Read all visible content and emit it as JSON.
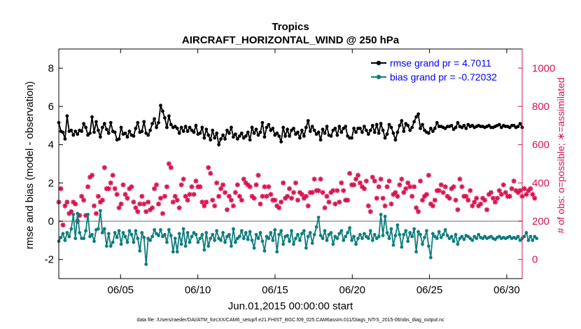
{
  "chart_data": {
    "type": "line",
    "title": "Tropics",
    "subtitle": "AIRCRAFT_HORIZONTAL_WIND @ 250 hPa",
    "xlabel": "Jun.01,2015 00:00:00 start",
    "ylabel": "rmse and bias (model - observation)",
    "y2label": "# of obs: o=possible; ∗=assimilated",
    "footnote": "data file: /Users/raeder/DAI/ATM_forcXX/CAM6_setup/f.e21.FHIST_BGC.f09_025.CAM6assim.011/Diags_NTrS_2015-06/obs_diag_output.nc",
    "xlim": [
      1,
      31
    ],
    "ylim": [
      -3,
      9
    ],
    "y2lim": [
      -100,
      1100
    ],
    "x_ticks": [
      {
        "value": 5,
        "label": "06/05"
      },
      {
        "value": 10,
        "label": "06/10"
      },
      {
        "value": 15,
        "label": "06/15"
      },
      {
        "value": 20,
        "label": "06/20"
      },
      {
        "value": 25,
        "label": "06/25"
      },
      {
        "value": 30,
        "label": "06/30"
      }
    ],
    "y_ticks": [
      -2,
      0,
      2,
      4,
      6,
      8
    ],
    "y2_ticks": [
      0,
      200,
      400,
      600,
      800,
      1000
    ],
    "zero_line": 0,
    "legend": [
      "rmse grand pr = 4.7011",
      "bias grand pr = -0.72032"
    ],
    "colors": {
      "rmse": "#000000",
      "bias": "#0e7d7d",
      "obs": "#d6154f",
      "zero": "#b4b4b4"
    },
    "series": [
      {
        "name": "rmse",
        "values": [
          5.15,
          4.7,
          4.65,
          4.3,
          5.5,
          4.7,
          4.75,
          4.5,
          4.7,
          4.55,
          4.75,
          4.7,
          5.1,
          4.9,
          4.5,
          4.6,
          5.45,
          4.65,
          5.2,
          4.75,
          4.4,
          4.9,
          5.1,
          4.8,
          4.6,
          5.15,
          4.7,
          4.65,
          4.25,
          4.3,
          4.9,
          4.55,
          4.6,
          4.4,
          4.7,
          4.5,
          4.45,
          4.85,
          5.15,
          4.65,
          4.7,
          5.2,
          4.6,
          4.5,
          4.75,
          5.1,
          5.35,
          4.9,
          5.15,
          6.05,
          5.75,
          5.4,
          4.9,
          5.5,
          5.05,
          4.9,
          4.95,
          4.85,
          4.6,
          4.9,
          4.7,
          4.95,
          4.7,
          4.9,
          4.75,
          4.65,
          5.0,
          4.55,
          4.6,
          4.9,
          4.35,
          4.8,
          4.5,
          4.25,
          4.75,
          4.35,
          4.6,
          4.0,
          4.3,
          4.5,
          4.3,
          4.75,
          4.6,
          4.9,
          4.4,
          4.55,
          4.3,
          4.45,
          4.6,
          4.35,
          4.45,
          4.65,
          4.25,
          4.9,
          4.6,
          4.8,
          4.5,
          4.65,
          5.15,
          4.4,
          4.9,
          5.05,
          4.75,
          4.85,
          4.5,
          4.6,
          4.45,
          4.15,
          4.9,
          4.45,
          4.8,
          4.45,
          4.75,
          4.85,
          4.55,
          4.65,
          4.35,
          4.75,
          4.45,
          4.9,
          5.25,
          4.7,
          4.95,
          4.75,
          4.55,
          4.65,
          4.25,
          4.8,
          4.6,
          4.95,
          4.5,
          4.45,
          4.75,
          4.85,
          4.5,
          4.95,
          4.65,
          4.85,
          4.95,
          4.45,
          4.35,
          4.35,
          4.85,
          4.65,
          4.85,
          4.85,
          4.65,
          4.95,
          4.75,
          4.55,
          4.75,
          5.0,
          4.65,
          5.05,
          4.6,
          5.1,
          4.75,
          4.35,
          4.55,
          5.05,
          4.9,
          4.6,
          4.25,
          4.65,
          5.0,
          5.25,
          4.7,
          5.1,
          5.0,
          4.75,
          4.9,
          5.2,
          5.45,
          5.6,
          4.85,
          5.05,
          4.75,
          4.65,
          4.6,
          4.85,
          4.7,
          4.85,
          5.15,
          4.95,
          4.95,
          4.9,
          4.85,
          4.95,
          4.95,
          5.0,
          4.8,
          4.9,
          5.15,
          4.95,
          4.9,
          5.0,
          4.85,
          5.05,
          4.95,
          5.0,
          4.9,
          4.95,
          5.0,
          4.95,
          4.95,
          4.9,
          4.95,
          5.0,
          4.9,
          4.9,
          4.95,
          5.0,
          5.05,
          4.9,
          5.0,
          4.95,
          4.95,
          4.9,
          5.0,
          5.0,
          4.9,
          4.95,
          5.1,
          4.9
        ]
      },
      {
        "name": "bias",
        "values": [
          -1.05,
          -0.85,
          -0.65,
          -1.0,
          -0.6,
          -0.8,
          -0.4,
          0.35,
          -0.9,
          0.4,
          -0.6,
          -0.9,
          -0.9,
          -0.5,
          0.35,
          -0.8,
          -0.7,
          -1.05,
          -0.45,
          -0.4,
          0.55,
          -0.6,
          -0.4,
          -1.3,
          -0.65,
          -1.3,
          -1.1,
          -0.6,
          -0.85,
          -0.5,
          -1.2,
          -0.6,
          -0.8,
          -1.1,
          -0.5,
          -0.7,
          -1.1,
          -0.5,
          -0.9,
          -1.55,
          -0.6,
          -0.85,
          -2.25,
          -0.9,
          -1.0,
          -0.8,
          -0.45,
          -0.65,
          -0.75,
          -0.45,
          -0.8,
          -0.7,
          -1.1,
          -0.45,
          -0.75,
          -1.6,
          -0.9,
          -1.6,
          -0.65,
          -1.2,
          -0.4,
          -1.3,
          -0.6,
          -1.1,
          -0.8,
          -0.6,
          -0.7,
          -1.1,
          -0.9,
          -0.7,
          -1.5,
          -0.6,
          -1.3,
          -0.9,
          -0.7,
          -1.0,
          -0.5,
          -0.9,
          -1.0,
          -0.6,
          -1.1,
          -0.8,
          -0.7,
          -1.3,
          -0.4,
          -1.1,
          -0.9,
          -0.8,
          -0.5,
          -0.9,
          -0.6,
          -0.95,
          -0.55,
          -1.0,
          -1.4,
          -0.7,
          -0.9,
          -0.6,
          -1.05,
          -1.55,
          -0.8,
          -0.9,
          -0.6,
          -1.0,
          -0.45,
          -1.6,
          -0.7,
          -0.5,
          -1.2,
          -0.8,
          -0.75,
          -1.05,
          -0.5,
          -1.2,
          -0.9,
          -0.7,
          -1.0,
          -0.65,
          -0.5,
          -1.4,
          -0.8,
          -0.6,
          -1.15,
          -0.7,
          -0.3,
          0.2,
          -0.75,
          -0.9,
          -0.5,
          -1.0,
          -0.7,
          -0.6,
          -1.2,
          -0.8,
          -0.9,
          -0.65,
          -0.5,
          -1.0,
          -0.8,
          -0.6,
          -0.35,
          -1.0,
          -0.8,
          -1.2,
          -0.9,
          -0.7,
          -0.9,
          -0.65,
          -0.8,
          -0.9,
          -0.5,
          -1.0,
          -0.7,
          -0.9,
          -0.8,
          0.35,
          -0.75,
          0.25,
          -0.6,
          -0.9,
          -0.4,
          -1.25,
          -0.75,
          -0.2,
          -0.7,
          -1.35,
          -0.7,
          -0.5,
          -1.05,
          -0.6,
          -0.8,
          -0.4,
          -1.6,
          -0.55,
          -0.7,
          -1.2,
          -0.85,
          -0.5,
          -1.3,
          -1.9,
          -0.65,
          -0.8,
          -0.9,
          -0.55,
          -0.85,
          -0.7,
          -0.45,
          -0.75,
          -0.9,
          -0.8,
          -1.05,
          -0.7,
          -1.2,
          -0.9,
          -0.8,
          -0.95,
          -0.75,
          -0.8,
          -0.9,
          -1.0,
          -0.8,
          -0.9,
          -0.7,
          -0.85,
          -0.9,
          -0.8,
          -0.9,
          -0.85,
          -0.8,
          -0.9,
          -0.95,
          -0.85,
          -0.8,
          -0.9,
          -0.85,
          -0.9,
          -0.85,
          -0.8,
          -0.9,
          -0.85,
          -0.9,
          -0.8,
          -1.0,
          -0.9,
          -0.8,
          -0.6,
          -1.0,
          -0.8,
          -1.0,
          -0.8,
          -0.9
        ]
      },
      {
        "name": "obs_count",
        "values": [
          300,
          370,
          180,
          280,
          300,
          240,
          250,
          300,
          290,
          200,
          230,
          330,
          310,
          230,
          380,
          430,
          440,
          280,
          240,
          330,
          300,
          310,
          480,
          370,
          370,
          400,
          440,
          370,
          340,
          270,
          290,
          390,
          340,
          320,
          370,
          380,
          300,
          270,
          250,
          290,
          330,
          290,
          250,
          300,
          260,
          270,
          370,
          390,
          290,
          320,
          240,
          330,
          380,
          500,
          480,
          300,
          330,
          310,
          270,
          390,
          420,
          330,
          310,
          340,
          380,
          340,
          410,
          380,
          380,
          300,
          280,
          300,
          480,
          450,
          310,
          280,
          400,
          330,
          370,
          390,
          350,
          260,
          330,
          310,
          280,
          350,
          390,
          330,
          310,
          420,
          400,
          390,
          380,
          330,
          320,
          390,
          440,
          290,
          330,
          380,
          330,
          380,
          340,
          310,
          310,
          280,
          270,
          300,
          400,
          320,
          330,
          370,
          320,
          350,
          400,
          310,
          350,
          340,
          320,
          330,
          280,
          350,
          350,
          420,
          360,
          360,
          420,
          350,
          270,
          330,
          300,
          350,
          360,
          290,
          360,
          300,
          400,
          360,
          310,
          310,
          450,
          390,
          390,
          420,
          440,
          400,
          380,
          370,
          410,
          280,
          250,
          430,
          410,
          320,
          380,
          420,
          320,
          280,
          380,
          410,
          290,
          340,
          350,
          330,
          390,
          420,
          350,
          370,
          400,
          380,
          330,
          380,
          270,
          250,
          410,
          310,
          330,
          340,
          440,
          290,
          280,
          310,
          360,
          360,
          390,
          350,
          380,
          330,
          320,
          370,
          380,
          310,
          260,
          420,
          380,
          330,
          330,
          310,
          360,
          280,
          300,
          320,
          280,
          290,
          320,
          310,
          260,
          340,
          350,
          320,
          300,
          320,
          360,
          340,
          390,
          350,
          330,
          330,
          370,
          410,
          360,
          350,
          360,
          330,
          370,
          340,
          360,
          370,
          340,
          320
        ]
      }
    ]
  }
}
